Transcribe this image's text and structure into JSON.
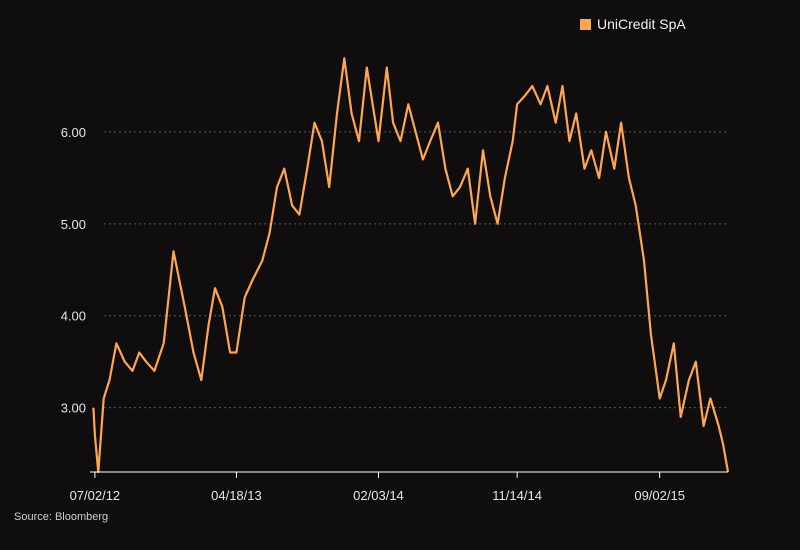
{
  "legend": {
    "label": "UniCredit SpA",
    "color": "#ffa650"
  },
  "source": "Source: Bloomberg",
  "colors": {
    "background": "#0f0d0d",
    "line": "#ffa650",
    "grid": "#5a5a5a",
    "axis": "#ffffff"
  },
  "chart_data": {
    "type": "line",
    "title": "",
    "xlabel": "",
    "ylabel": "",
    "x_tick_labels": [
      "07/02/12",
      "04/18/13",
      "02/03/14",
      "11/14/14",
      "09/02/15"
    ],
    "y_tick_labels": [
      "3.00",
      "4.00",
      "5.00",
      "6.00"
    ],
    "y_ticks": [
      3,
      4,
      5,
      6
    ],
    "ylim": [
      2.3,
      7.0
    ],
    "xlim": [
      "2012-06-22",
      "2016-01-20"
    ],
    "grid": "horizontal-dotted",
    "legend_position": "top-right",
    "series": [
      {
        "name": "UniCredit SpA",
        "color": "#ffa650",
        "x": [
          "2012-06-29",
          "2012-07-02",
          "2012-07-09",
          "2012-07-20",
          "2012-08-01",
          "2012-08-15",
          "2012-09-01",
          "2012-09-17",
          "2012-10-01",
          "2012-10-15",
          "2012-11-01",
          "2012-11-20",
          "2012-12-10",
          "2013-01-02",
          "2013-01-20",
          "2013-02-05",
          "2013-02-20",
          "2013-03-05",
          "2013-03-20",
          "2013-04-05",
          "2013-04-18",
          "2013-05-05",
          "2013-05-22",
          "2013-06-10",
          "2013-06-25",
          "2013-07-10",
          "2013-07-25",
          "2013-08-10",
          "2013-08-25",
          "2013-09-10",
          "2013-09-25",
          "2013-10-10",
          "2013-10-25",
          "2013-11-10",
          "2013-11-25",
          "2013-12-10",
          "2013-12-25",
          "2014-01-10",
          "2014-01-25",
          "2014-02-03",
          "2014-02-20",
          "2014-03-05",
          "2014-03-20",
          "2014-04-05",
          "2014-04-20",
          "2014-05-05",
          "2014-05-20",
          "2014-06-05",
          "2014-06-20",
          "2014-07-05",
          "2014-07-20",
          "2014-08-05",
          "2014-08-20",
          "2014-09-05",
          "2014-09-20",
          "2014-10-05",
          "2014-10-20",
          "2014-11-05",
          "2014-11-14",
          "2014-12-01",
          "2014-12-15",
          "2015-01-01",
          "2015-01-15",
          "2015-02-01",
          "2015-02-15",
          "2015-03-01",
          "2015-03-15",
          "2015-04-01",
          "2015-04-15",
          "2015-05-01",
          "2015-05-15",
          "2015-06-01",
          "2015-06-15",
          "2015-07-01",
          "2015-07-15",
          "2015-08-01",
          "2015-08-15",
          "2015-09-02",
          "2015-09-15",
          "2015-10-01",
          "2015-10-15",
          "2015-11-01",
          "2015-11-15",
          "2015-12-01",
          "2015-12-15",
          "2016-01-01",
          "2016-01-10",
          "2016-01-20"
        ],
        "values": [
          3.0,
          2.7,
          2.3,
          3.1,
          3.3,
          3.7,
          3.5,
          3.4,
          3.6,
          3.5,
          3.4,
          3.7,
          4.7,
          4.1,
          3.6,
          3.3,
          3.9,
          4.3,
          4.1,
          3.6,
          3.6,
          4.2,
          4.4,
          4.6,
          4.9,
          5.4,
          5.6,
          5.2,
          5.1,
          5.6,
          6.1,
          5.9,
          5.4,
          6.2,
          6.8,
          6.2,
          5.9,
          6.7,
          6.2,
          5.9,
          6.7,
          6.1,
          5.9,
          6.3,
          6.0,
          5.7,
          5.9,
          6.1,
          5.6,
          5.3,
          5.4,
          5.6,
          5.0,
          5.8,
          5.3,
          5.0,
          5.5,
          5.9,
          6.3,
          6.4,
          6.5,
          6.3,
          6.5,
          6.1,
          6.5,
          5.9,
          6.2,
          5.6,
          5.8,
          5.5,
          6.0,
          5.6,
          6.1,
          5.5,
          5.2,
          4.6,
          3.8,
          3.1,
          3.3,
          3.7,
          2.9,
          3.3,
          3.5,
          2.8,
          3.1,
          2.8,
          2.6,
          2.3
        ]
      }
    ]
  }
}
